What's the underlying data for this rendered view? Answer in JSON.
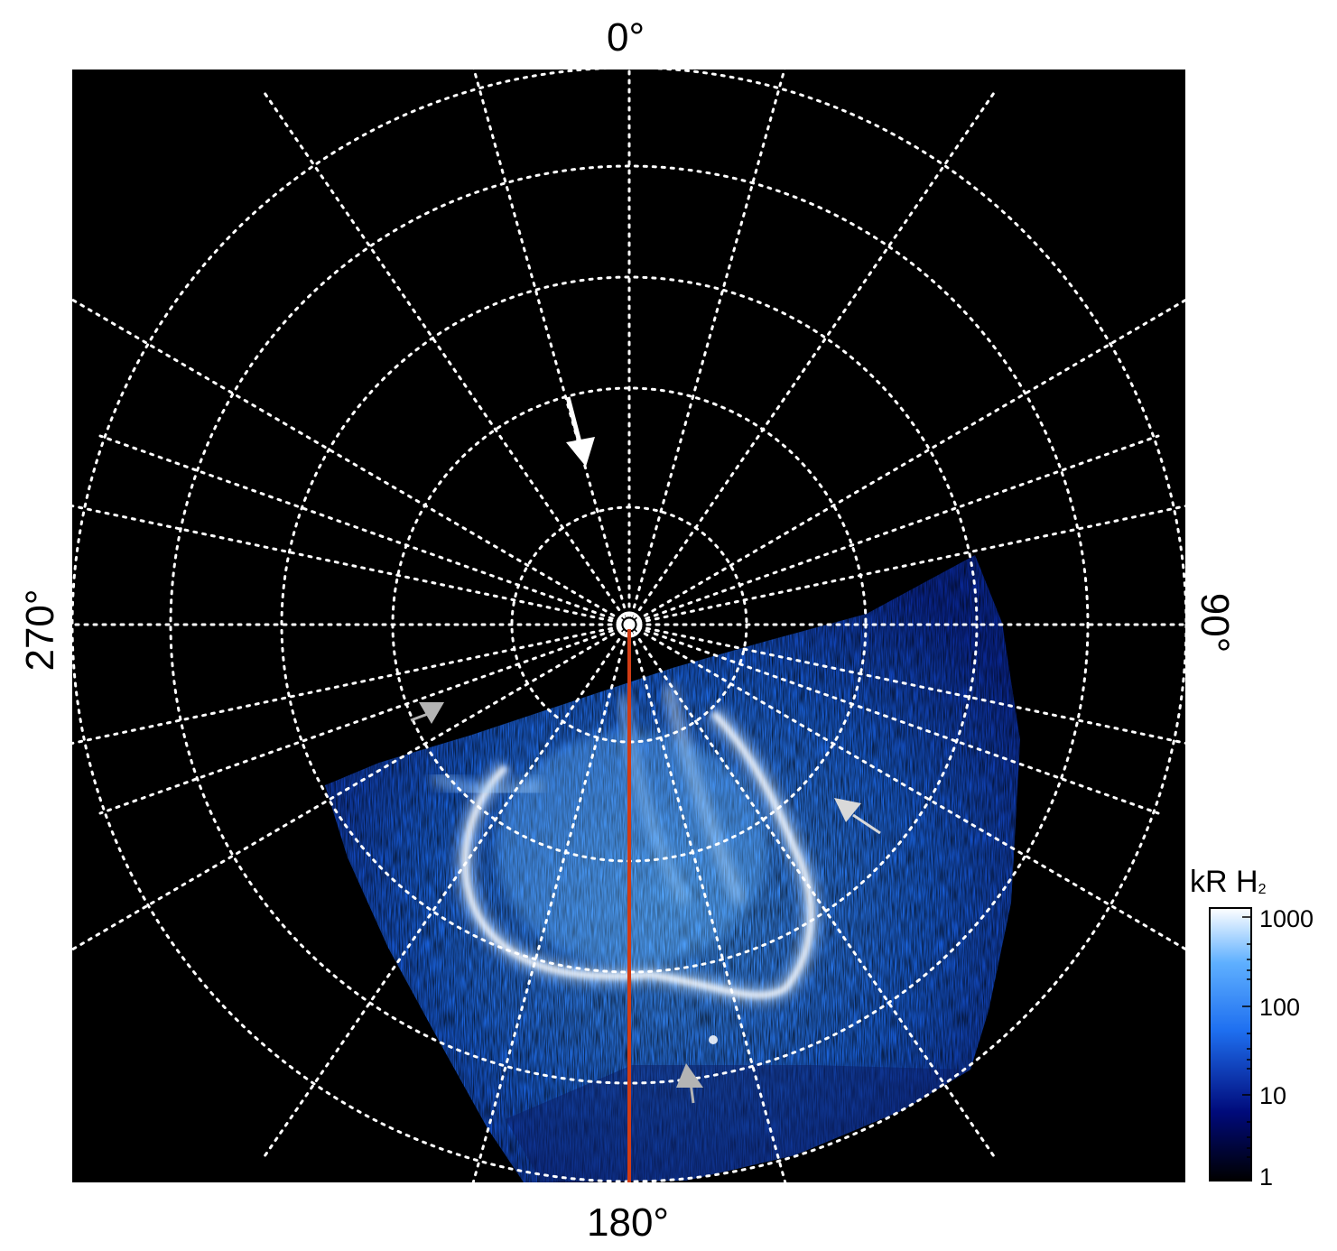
{
  "labels": {
    "top": "0°",
    "bottom": "180°",
    "left": "270°",
    "right": "90°"
  },
  "colorbar": {
    "unit": "kR H",
    "subscript": "2",
    "ticks": [
      "1000",
      "100",
      "10",
      "1"
    ],
    "colors": {
      "low": "#000000",
      "mid_low": "#000a7a",
      "mid": "#1e6ff0",
      "mid_high": "#5fb0ff",
      "high": "#ffffff"
    }
  },
  "colors": {
    "background": "#000000",
    "grid": "#ffffff",
    "meridian": "#d23c14",
    "gray_arrow": "#b4b4b4",
    "white_arrow": "#ffffff"
  },
  "icons": {
    "white_arrow": "arrow-down-icon",
    "gray_arrows": "arrow-icon"
  }
}
